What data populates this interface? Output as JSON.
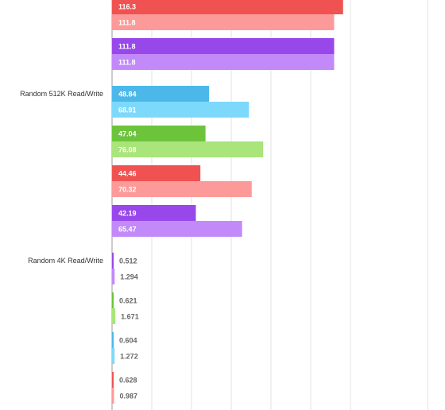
{
  "chart_data": {
    "type": "bar",
    "orientation": "horizontal",
    "grid": true,
    "categories": [
      {
        "label": "",
        "rows": [
          {
            "values": [
              116.3,
              111.8
            ],
            "colors": [
              "#f05252",
              "#fc9a9a"
            ]
          },
          {
            "values": [
              111.8,
              111.8
            ],
            "colors": [
              "#9848ea",
              "#c28af9"
            ]
          }
        ]
      },
      {
        "label": "Random 512K Read/Write",
        "rows": [
          {
            "values": [
              48.84,
              68.91
            ],
            "colors": [
              "#4cb8ea",
              "#7dd9fb"
            ]
          },
          {
            "values": [
              47.04,
              76.08
            ],
            "colors": [
              "#6cc43a",
              "#a9e57a"
            ]
          },
          {
            "values": [
              44.46,
              70.32
            ],
            "colors": [
              "#f05252",
              "#fc9a9a"
            ]
          },
          {
            "values": [
              42.19,
              65.47
            ],
            "colors": [
              "#9848ea",
              "#c28af9"
            ]
          }
        ]
      },
      {
        "label": "Random 4K Read/Write",
        "rows": [
          {
            "values": [
              0.512,
              1.294
            ],
            "colors": [
              "#9848ea",
              "#c28af9"
            ]
          },
          {
            "values": [
              0.621,
              1.671
            ],
            "colors": [
              "#6cc43a",
              "#a9e57a"
            ]
          },
          {
            "values": [
              0.604,
              1.272
            ],
            "colors": [
              "#4cb8ea",
              "#7dd9fb"
            ]
          },
          {
            "values": [
              0.628,
              0.987
            ],
            "colors": [
              "#f05252",
              "#fc9a9a"
            ]
          }
        ]
      }
    ],
    "value_label_display": {
      "116.3": "116.3",
      "111.8": "111.8",
      "48.84": "48.84",
      "68.91": "68.91",
      "47.04": "47.04",
      "76.08": "76.08",
      "44.46": "44.46",
      "70.32": "70.32",
      "42.19": "42.19",
      "65.47": "65.47",
      "0.512": "0.512",
      "1.294": "1.294",
      "0.621": "0.621",
      "1.671": "1.671",
      "0.604": "0.604",
      "1.272": "1.272",
      "0.628": "0.628",
      "0.987": "0.987"
    },
    "xlim": [
      0,
      125
    ]
  }
}
